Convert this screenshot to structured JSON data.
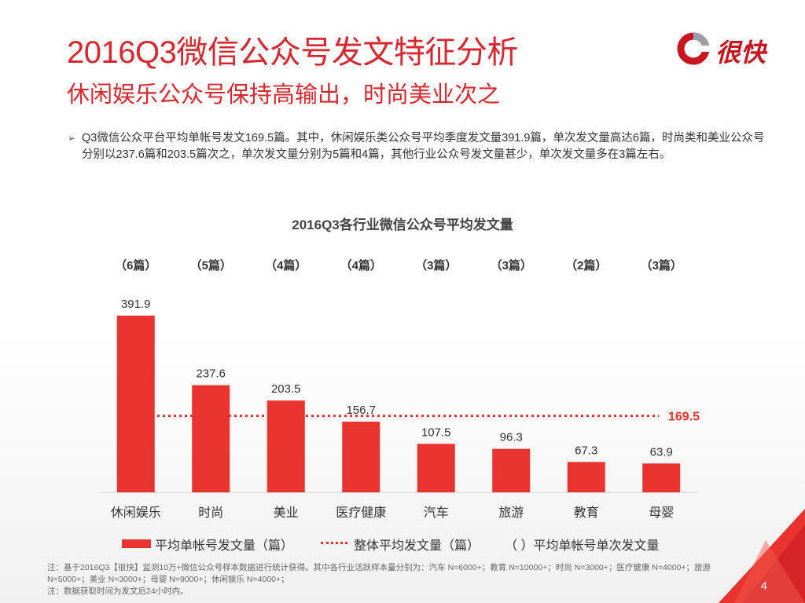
{
  "header": {
    "title": "2016Q3微信公众号发文特征分析",
    "subtitle": "休闲娱乐公众号保持高输出，时尚美业次之"
  },
  "logo": {
    "text": "很快",
    "icon": "logo-ring-icon"
  },
  "summary": {
    "bullet_icon": "arrow-bullet-icon",
    "text": "Q3微信公众平台平均单帐号发文169.5篇。其中，休闲娱乐类公众号平均季度发文量391.9篇，单次发文量高达6篇，时尚类和美业公众号分别以237.6篇和203.5篇次之，单次发文量分别为5篇和4篇，其他行业公众号发文量甚少，单次发文量多在3篇左右。"
  },
  "chart_data": {
    "type": "bar",
    "title": "2016Q3各行业微信公众号平均发文量",
    "categories": [
      "休闲娱乐",
      "时尚",
      "美业",
      "医疗健康",
      "汽车",
      "旅游",
      "教育",
      "母婴"
    ],
    "series": [
      {
        "name": "平均单帐号发文量（篇）",
        "values": [
          391.9,
          237.6,
          203.5,
          156.7,
          107.5,
          96.3,
          67.3,
          63.9
        ],
        "labels": [
          "391.9",
          "237.6",
          "203.5",
          "156.7",
          "107.5",
          "96.3",
          "67.3",
          "63.9"
        ]
      }
    ],
    "per_post": {
      "name": "（ ）平均单帐号单次发文量",
      "values": [
        6,
        5,
        4,
        4,
        3,
        3,
        2,
        3
      ],
      "labels": [
        "（6篇）",
        "（5篇）",
        "（4篇）",
        "（4篇）",
        "（3篇）",
        "（3篇）",
        "（2篇）",
        "（3篇）"
      ]
    },
    "reference_line": {
      "name": "整体平均发文量（篇）",
      "value": 169.5,
      "label": "169.5"
    },
    "ylim": [
      0,
      391.9
    ],
    "xlabel": "",
    "ylabel": "",
    "grid": false,
    "legend_position": "bottom",
    "colors": {
      "bar": "#e8332f",
      "line": "#e8332f",
      "axis": "#d9d9d9",
      "text": "#333333"
    }
  },
  "legend": {
    "bar": "平均单帐号发文量（篇）",
    "line": "整体平均发文量（篇）",
    "per_post": "（ ）平均单帐号单次发文量"
  },
  "footnote": {
    "line1": "注：基于2016Q3【很快】监测10万+微信公众号样本数据进行统计获得。其中各行业活跃样本量分别为：汽车 N=6000+；教育 N=10000+；时尚 N=3000+；医疗健康 N=4000+；旅游 N=5000+；美业 N=3000+；母婴 N=9000+；休闲娱乐 N=4000+；",
    "line2": "注：数据获取时间为发文后24小时内。"
  },
  "page": {
    "number": "4"
  },
  "theme": {
    "accent": "#d7282f"
  }
}
